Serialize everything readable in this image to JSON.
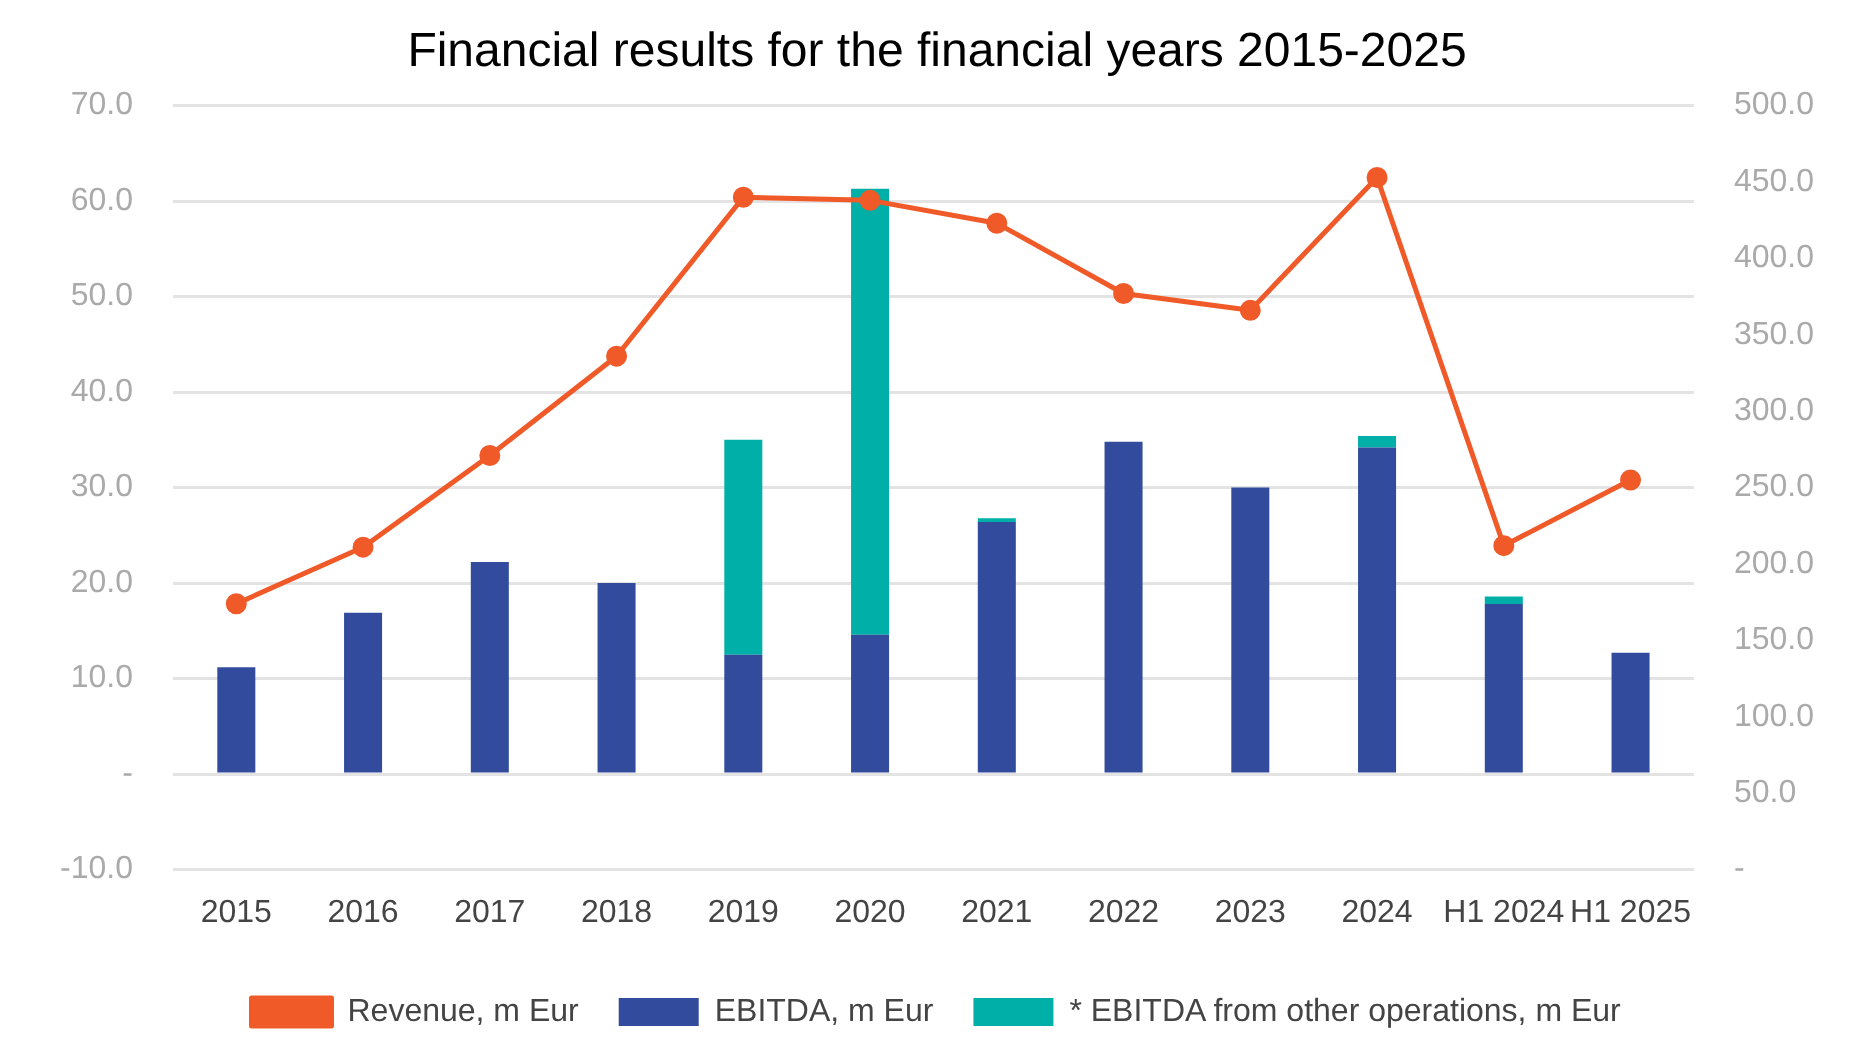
{
  "chart_data": {
    "type": "bar",
    "title": "Financial results for the financial years 2015-2025",
    "categories": [
      "2015",
      "2016",
      "2017",
      "2018",
      "2019",
      "2020",
      "2021",
      "2022",
      "2023",
      "2024",
      "H1 2024",
      "H1 2025"
    ],
    "stacked": true,
    "series": [
      {
        "name": "EBITDA, m Eur",
        "color": "#334b9c",
        "values": [
          11.2,
          16.9,
          22.2,
          20.0,
          12.5,
          14.6,
          26.4,
          34.8,
          30.0,
          34.2,
          17.8,
          12.7
        ]
      },
      {
        "name": "* EBITDA from other operations, m Eur",
        "color": "#00b0a8",
        "values": [
          0,
          0,
          0,
          0,
          22.5,
          46.7,
          0.4,
          0,
          0,
          1.2,
          0.8,
          0
        ]
      },
      {
        "name": "Revenue, m Eur",
        "type": "line",
        "axis": "y2",
        "color": "#f05a28",
        "marker": "circle",
        "values": [
          174,
          211,
          271,
          336,
          440,
          438,
          423,
          377,
          366,
          453,
          212,
          255
        ]
      }
    ],
    "ylim": [
      -10,
      70
    ],
    "yticks": [
      {
        "value": 70,
        "label": "70.0"
      },
      {
        "value": 60,
        "label": "60.0"
      },
      {
        "value": 50,
        "label": "50.0"
      },
      {
        "value": 40,
        "label": "40.0"
      },
      {
        "value": 30,
        "label": "30.0"
      },
      {
        "value": 20,
        "label": "20.0"
      },
      {
        "value": 10,
        "label": "10.0"
      },
      {
        "value": 0,
        "label": "-"
      },
      {
        "value": -10,
        "label": "-10.0"
      }
    ],
    "y2lim": [
      0,
      500
    ],
    "y2ticks": [
      {
        "value": 500,
        "label": "500.0"
      },
      {
        "value": 450,
        "label": "450.0"
      },
      {
        "value": 400,
        "label": "400.0"
      },
      {
        "value": 350,
        "label": "350.0"
      },
      {
        "value": 300,
        "label": "300.0"
      },
      {
        "value": 250,
        "label": "250.0"
      },
      {
        "value": 200,
        "label": "200.0"
      },
      {
        "value": 150,
        "label": "150.0"
      },
      {
        "value": 100,
        "label": "100.0"
      },
      {
        "value": 50,
        "label": "50.0"
      },
      {
        "value": 0,
        "label": "-"
      }
    ],
    "grid": "y",
    "legend": "bottom"
  }
}
